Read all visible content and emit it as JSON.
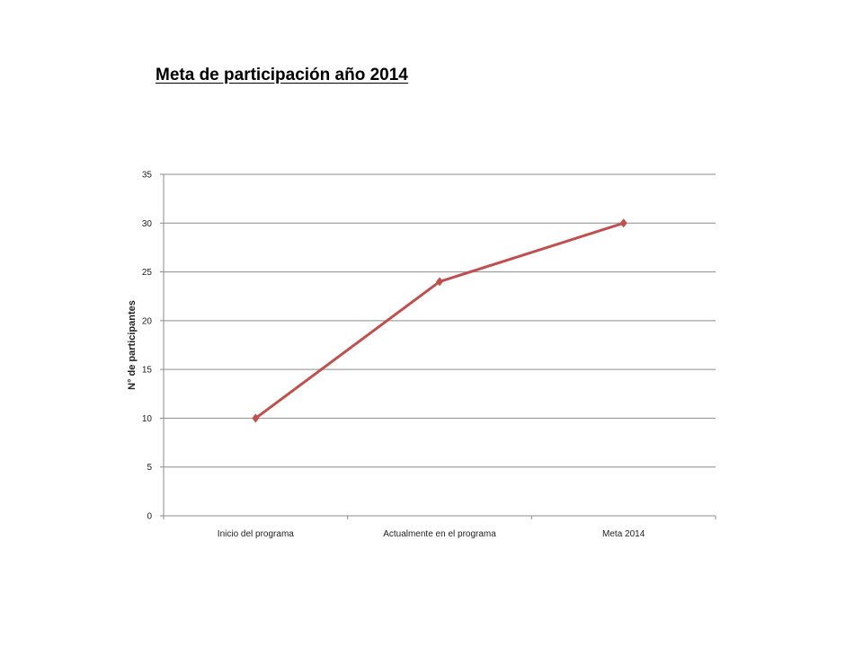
{
  "slide": {
    "title": "Meta de participación año 2014"
  },
  "chart_data": {
    "type": "line",
    "title": "",
    "xlabel": "",
    "ylabel": "N° de participantes",
    "categories": [
      "Inicio del programa",
      "Actualmente en el programa",
      "Meta 2014"
    ],
    "series": [
      {
        "values": [
          10,
          24,
          30
        ],
        "color": "#c0504d",
        "marker": "diamond"
      }
    ],
    "ylim": [
      0,
      35
    ],
    "yticks": [
      0,
      5,
      10,
      15,
      20,
      25,
      30,
      35
    ],
    "grid": true,
    "gridline_color": "#8c8c8c",
    "legend": "none"
  }
}
